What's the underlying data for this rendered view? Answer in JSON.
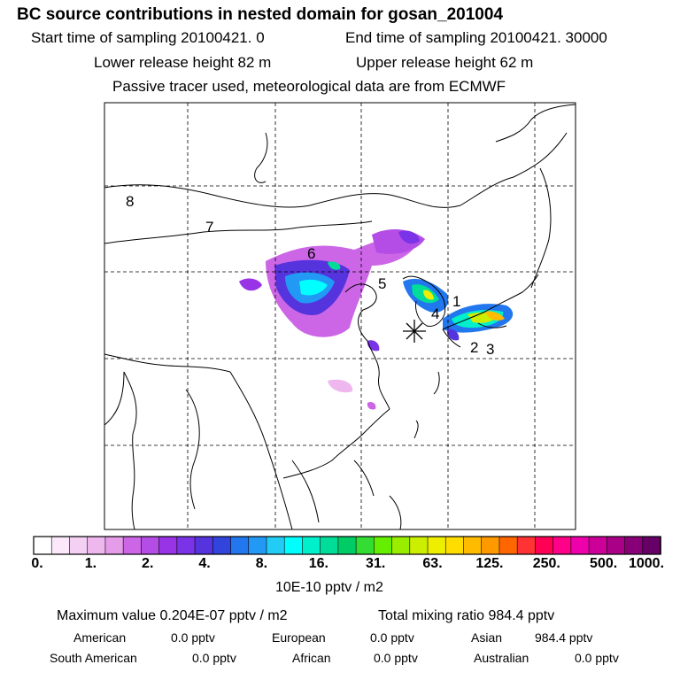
{
  "header": {
    "title": "BC  source contributions in nested domain for gosan_201004",
    "start_label": "Start time of sampling 20100421.     0",
    "end_label": "End time of sampling 20100421. 30000",
    "lower_release": "Lower release height   82 m",
    "upper_release": "Upper release height   62 m",
    "tracer_note": "Passive tracer used, meteorological data are from ECMWF"
  },
  "map": {
    "region_labels": [
      "1",
      "2",
      "3",
      "4",
      "5",
      "6",
      "7",
      "8"
    ],
    "receptor_marker": "star-icon"
  },
  "colorbar": {
    "colors": [
      "#ffffff",
      "#fbe8fb",
      "#f5d0f5",
      "#eeb8ee",
      "#e59ce9",
      "#cc66e6",
      "#b34de6",
      "#9933e6",
      "#7a33e6",
      "#5533dd",
      "#3344dd",
      "#2277ee",
      "#2299f5",
      "#22ccf5",
      "#00ffff",
      "#00f0cc",
      "#00dd99",
      "#00cc66",
      "#33dd33",
      "#66ee00",
      "#99ee00",
      "#ccee00",
      "#eeee00",
      "#ffdd00",
      "#ffbb00",
      "#ff9900",
      "#ff6600",
      "#ff3333",
      "#ff0055",
      "#ff0088",
      "#ee00aa",
      "#cc0099",
      "#aa0088",
      "#880077",
      "#660066"
    ],
    "tick_labels": [
      "0.",
      "1.",
      "2.",
      "4.",
      "8.",
      "16.",
      "31.",
      "63.",
      "125.",
      "250.",
      "500.",
      "1000."
    ],
    "unit_label": "10E-10 pptv / m2"
  },
  "summary": {
    "maximum_value": "Maximum value  0.204E-07 pptv / m2",
    "total_mixing": "Total mixing ratio     984.4 pptv",
    "contributions": [
      {
        "name": "American",
        "value": "0.0 pptv"
      },
      {
        "name": "European",
        "value": "0.0 pptv"
      },
      {
        "name": "Asian",
        "value": "984.4 pptv"
      },
      {
        "name": "South American",
        "value": "0.0 pptv"
      },
      {
        "name": "African",
        "value": "0.0 pptv"
      },
      {
        "name": "Australian",
        "value": "0.0 pptv"
      }
    ]
  }
}
